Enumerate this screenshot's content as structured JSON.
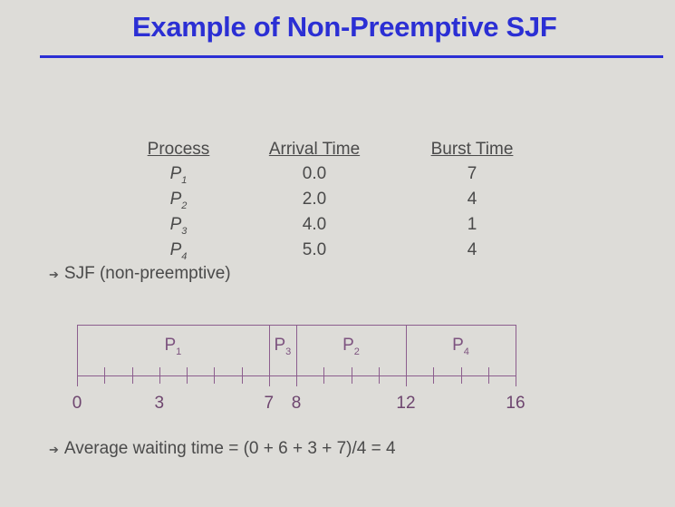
{
  "title": "Example of Non-Preemptive SJF",
  "table": {
    "headers": [
      "Process",
      "Arrival Time",
      "Burst Time"
    ],
    "rows": [
      {
        "process": "P",
        "sub": "1",
        "arrival": "0.0",
        "burst": "7"
      },
      {
        "process": "P",
        "sub": "2",
        "arrival": "2.0",
        "burst": "4"
      },
      {
        "process": "P",
        "sub": "3",
        "arrival": "4.0",
        "burst": "1"
      },
      {
        "process": "P",
        "sub": "4",
        "arrival": "5.0",
        "burst": "4"
      }
    ]
  },
  "bullets": [
    "SJF (non-preemptive)",
    "Average waiting time = (0 + 6 + 3 + 7)/4 = 4"
  ],
  "gantt": {
    "range": [
      0,
      16
    ],
    "segments": [
      {
        "name": "P",
        "sub": "1",
        "start": 0,
        "end": 7
      },
      {
        "name": "P",
        "sub": "3",
        "start": 7,
        "end": 8
      },
      {
        "name": "P",
        "sub": "2",
        "start": 8,
        "end": 12
      },
      {
        "name": "P",
        "sub": "4",
        "start": 12,
        "end": 16
      }
    ],
    "time_labels": [
      "0",
      "3",
      "7",
      "8",
      "12",
      "16"
    ],
    "colors": {
      "line": "#8c5e8e",
      "title": "#2b2fd4"
    }
  }
}
